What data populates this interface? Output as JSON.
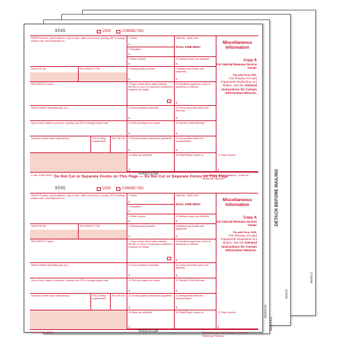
{
  "form": {
    "number_code": "9595",
    "void_label": "VOID",
    "corrected_label": "CORRECTED",
    "omb": "OMB No. 1545-0115",
    "form_id": "Form 1099-MISC",
    "title": "Miscellaneous Information",
    "copy_a": "Copy A",
    "copy_a_sub": "For Internal Revenue Service Center",
    "file_with": "File with Form 1096.",
    "privacy_1": "For Privacy Act and Paperwork Reduction Act Notice, see the",
    "privacy_2": "General Instructions for Certain Information Returns.",
    "footer_form": "Form 1099-MISC",
    "footer_code": "0000/1034",
    "footer_dept": "Department of the Treasury - Internal Revenue Service",
    "dollar": "$",
    "cut_notice": "Do Not Cut or Separate Forms on This Page — Do Not Cut or Separate Forms on This Page",
    "detach": "DETACH BEFORE MAILING",
    "back_sheets": [
      "BMISFED",
      "BMISFSF",
      "BMISC",
      "BMISC1"
    ],
    "boxes": {
      "payer_name": "PAYER'S name, street address, city or town, state or province, country, ZIP or foreign postal code, and telephone no.",
      "b1": "1 Rents",
      "b2": "2 Royalties",
      "b3": "3 Other income",
      "b4": "4 Federal income tax withheld",
      "payer_tin": "PAYER'S TIN",
      "recipient_tin": "RECIPIENT'S TIN",
      "b5": "5 Fishing boat proceeds",
      "b6": "6 Medical and health care payments",
      "recipient_name": "RECIPIENT'S name",
      "b7": "7 Payer made direct sales totaling $5,000 or more of consumer products to recipient for resale",
      "b8": "8 Substitute payments in lieu of dividends or interest",
      "street": "Street address (including apt. no.)",
      "b9": "9 Crop insurance proceeds",
      "b10": "10 Gross proceeds paid to an attorney",
      "city": "City or town, state or province, country, and ZIP or foreign postal code",
      "b11": "11 Fish purchased for resale",
      "b12": "12 Section 409A deferrals",
      "account": "Account number (see instructions)",
      "fatca": "FATCA filing requirement",
      "tin2": "2nd TIN not.",
      "b13": "13 Excess golden parachute payments",
      "b14": "14 Nonqualified deferred compensation",
      "b15": "15 State tax withheld",
      "b16": "16 State/Payer's state no.",
      "b17": "17 State income"
    }
  }
}
